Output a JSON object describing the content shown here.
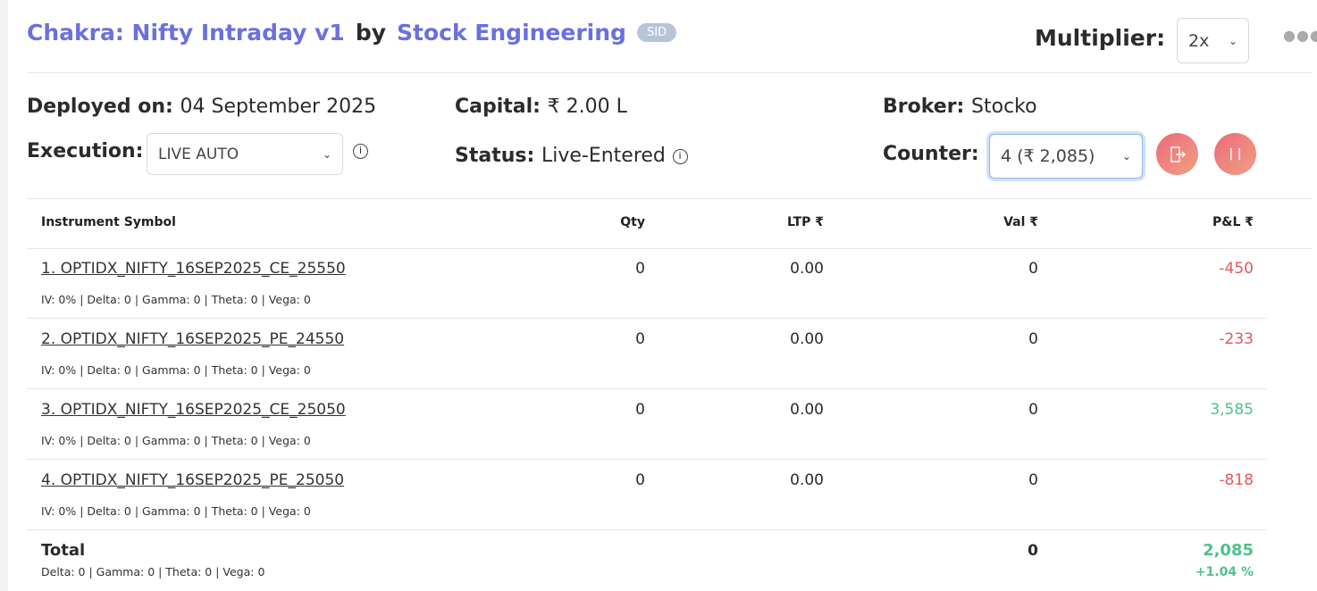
{
  "header": {
    "strategy_name": "Chakra: Nifty Intraday v1",
    "by": "by",
    "author": "Stock Engineering",
    "badge": "SID",
    "multiplier_label": "Multiplier:",
    "multiplier_value": "2x",
    "more_icon": "more-horizontal-icon"
  },
  "info": {
    "deployed_label": "Deployed on:",
    "deployed_value": "04 September 2025",
    "capital_label": "Capital:",
    "capital_value": "₹ 2.00 L",
    "broker_label": "Broker:",
    "broker_value": "Stocko",
    "execution_label": "Execution:",
    "execution_value": "LIVE AUTO",
    "status_label": "Status:",
    "status_value": "Live-Entered",
    "counter_label": "Counter:",
    "counter_value": "4 (₹ 2,085)"
  },
  "table": {
    "headers": [
      "Instrument Symbol",
      "Qty",
      "LTP ₹",
      "Val ₹",
      "P&L ₹"
    ],
    "rows": [
      {
        "symbol": "1. OPTIDX_NIFTY_16SEP2025_CE_25550",
        "greeks": "IV: 0% | Delta: 0 | Gamma: 0 | Theta: 0 | Vega: 0",
        "qty": "0",
        "ltp": "0.00",
        "val": "0",
        "pnl": "-450",
        "pnl_sign": "negative"
      },
      {
        "symbol": "2. OPTIDX_NIFTY_16SEP2025_PE_24550",
        "greeks": "IV: 0% | Delta: 0 | Gamma: 0 | Theta: 0 | Vega: 0",
        "qty": "0",
        "ltp": "0.00",
        "val": "0",
        "pnl": "-233",
        "pnl_sign": "negative"
      },
      {
        "symbol": "3. OPTIDX_NIFTY_16SEP2025_CE_25050",
        "greeks": "IV: 0% | Delta: 0 | Gamma: 0 | Theta: 0 | Vega: 0",
        "qty": "0",
        "ltp": "0.00",
        "val": "0",
        "pnl": "3,585",
        "pnl_sign": "positive"
      },
      {
        "symbol": "4. OPTIDX_NIFTY_16SEP2025_PE_25050",
        "greeks": "IV: 0% | Delta: 0 | Gamma: 0 | Theta: 0 | Vega: 0",
        "qty": "0",
        "ltp": "0.00",
        "val": "0",
        "pnl": "-818",
        "pnl_sign": "negative"
      }
    ],
    "total": {
      "label": "Total",
      "greeks": "Delta: 0 | Gamma: 0  | Theta: 0 | Vega: 0",
      "val": "0",
      "pnl": "2,085",
      "pnl_pct": "+1.04 %"
    }
  },
  "colors": {
    "accent": "#6a70dd",
    "negative": "#e5575b",
    "positive": "#4cc38a",
    "badge": "#b8c4d8"
  }
}
